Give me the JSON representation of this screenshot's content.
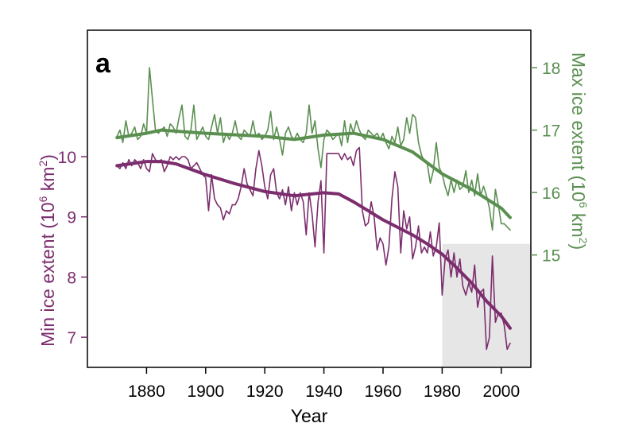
{
  "chart_data": {
    "type": "line",
    "panel_label": "a",
    "xlabel": "Year",
    "xlim": [
      1860,
      2010
    ],
    "x_ticks": [
      1880,
      1900,
      1920,
      1940,
      1960,
      1980,
      2000
    ],
    "left_axis": {
      "label_prefix": "Min ice extent (10",
      "label_sup": "6",
      "label_mid": " km",
      "label_sup2": "2",
      "label_suffix": ")",
      "color": "#7b2d6e",
      "ylim": [
        6.5,
        12.1
      ],
      "ticks": [
        7,
        8,
        9,
        10
      ]
    },
    "right_axis": {
      "label_prefix": "Max ice extent (10",
      "label_sup": "6",
      "label_mid": " km",
      "label_sup2": "2",
      "label_suffix": ")",
      "color": "#5a8f50",
      "ylim": [
        13.2,
        18.6
      ],
      "ticks": [
        15,
        16,
        17,
        18
      ]
    },
    "shaded_region": {
      "x": [
        1980,
        2010
      ],
      "y_left": [
        6.5,
        8.55
      ],
      "color": "#e6e6e6"
    },
    "series": [
      {
        "axis": "right",
        "style": "raw",
        "color": "#5a8f50",
        "points": [
          [
            1870,
            16.9
          ],
          [
            1871,
            17.0
          ],
          [
            1872,
            16.8
          ],
          [
            1873,
            17.15
          ],
          [
            1874,
            16.9
          ],
          [
            1875,
            16.95
          ],
          [
            1876,
            17.05
          ],
          [
            1877,
            16.85
          ],
          [
            1878,
            16.9
          ],
          [
            1879,
            17.1
          ],
          [
            1880,
            16.95
          ],
          [
            1881,
            18.0
          ],
          [
            1882,
            17.5
          ],
          [
            1883,
            17.0
          ],
          [
            1884,
            16.95
          ],
          [
            1885,
            17.0
          ],
          [
            1886,
            17.05
          ],
          [
            1887,
            16.9
          ],
          [
            1888,
            17.1
          ],
          [
            1889,
            17.05
          ],
          [
            1890,
            16.95
          ],
          [
            1891,
            17.2
          ],
          [
            1892,
            17.4
          ],
          [
            1893,
            16.9
          ],
          [
            1894,
            16.85
          ],
          [
            1895,
            17.0
          ],
          [
            1896,
            17.4
          ],
          [
            1897,
            16.85
          ],
          [
            1898,
            16.95
          ],
          [
            1899,
            17.05
          ],
          [
            1900,
            16.9
          ],
          [
            1901,
            16.85
          ],
          [
            1902,
            17.05
          ],
          [
            1903,
            17.25
          ],
          [
            1904,
            16.95
          ],
          [
            1905,
            17.2
          ],
          [
            1906,
            16.8
          ],
          [
            1907,
            16.95
          ],
          [
            1908,
            16.85
          ],
          [
            1909,
            16.95
          ],
          [
            1910,
            17.15
          ],
          [
            1911,
            16.9
          ],
          [
            1912,
            16.85
          ],
          [
            1913,
            17.0
          ],
          [
            1914,
            16.95
          ],
          [
            1915,
            16.9
          ],
          [
            1916,
            17.15
          ],
          [
            1917,
            16.9
          ],
          [
            1918,
            16.95
          ],
          [
            1919,
            16.85
          ],
          [
            1920,
            16.9
          ],
          [
            1921,
            17.0
          ],
          [
            1922,
            17.3
          ],
          [
            1923,
            16.85
          ],
          [
            1924,
            17.05
          ],
          [
            1925,
            16.85
          ],
          [
            1926,
            16.6
          ],
          [
            1927,
            16.95
          ],
          [
            1928,
            17.05
          ],
          [
            1929,
            16.9
          ],
          [
            1930,
            16.85
          ],
          [
            1931,
            16.95
          ],
          [
            1932,
            16.85
          ],
          [
            1933,
            16.8
          ],
          [
            1934,
            16.95
          ],
          [
            1935,
            17.4
          ],
          [
            1936,
            16.95
          ],
          [
            1937,
            17.15
          ],
          [
            1938,
            16.7
          ],
          [
            1939,
            16.4
          ],
          [
            1940,
            16.85
          ],
          [
            1941,
            17.0
          ],
          [
            1942,
            16.95
          ],
          [
            1943,
            16.85
          ],
          [
            1944,
            16.9
          ],
          [
            1945,
            16.95
          ],
          [
            1946,
            16.75
          ],
          [
            1947,
            17.15
          ],
          [
            1948,
            16.8
          ],
          [
            1949,
            17.1
          ],
          [
            1950,
            16.95
          ],
          [
            1951,
            17.15
          ],
          [
            1952,
            17.0
          ],
          [
            1953,
            16.9
          ],
          [
            1954,
            16.85
          ],
          [
            1955,
            17.0
          ],
          [
            1956,
            16.95
          ],
          [
            1957,
            16.9
          ],
          [
            1958,
            16.95
          ],
          [
            1959,
            16.85
          ],
          [
            1960,
            16.95
          ],
          [
            1961,
            16.8
          ],
          [
            1962,
            16.7
          ],
          [
            1963,
            16.9
          ],
          [
            1964,
            16.8
          ],
          [
            1965,
            17.05
          ],
          [
            1966,
            16.75
          ],
          [
            1967,
            16.85
          ],
          [
            1968,
            17.2
          ],
          [
            1969,
            16.95
          ],
          [
            1970,
            17.25
          ],
          [
            1971,
            17.2
          ],
          [
            1972,
            16.8
          ],
          [
            1973,
            16.6
          ],
          [
            1974,
            16.5
          ],
          [
            1975,
            16.45
          ],
          [
            1976,
            16.15
          ],
          [
            1977,
            16.35
          ],
          [
            1978,
            16.8
          ],
          [
            1979,
            16.4
          ],
          [
            1980,
            16.3
          ],
          [
            1981,
            16.1
          ],
          [
            1982,
            15.95
          ],
          [
            1983,
            16.2
          ],
          [
            1984,
            16.0
          ],
          [
            1985,
            16.2
          ],
          [
            1986,
            16.05
          ],
          [
            1987,
            16.1
          ],
          [
            1988,
            16.35
          ],
          [
            1989,
            16.0
          ],
          [
            1990,
            16.2
          ],
          [
            1991,
            15.95
          ],
          [
            1992,
            16.3
          ],
          [
            1993,
            15.95
          ],
          [
            1994,
            16.1
          ],
          [
            1995,
            15.95
          ],
          [
            1996,
            15.75
          ],
          [
            1997,
            15.4
          ],
          [
            1998,
            16.05
          ],
          [
            1999,
            15.8
          ],
          [
            2000,
            15.5
          ],
          [
            2001,
            15.5
          ],
          [
            2002,
            15.45
          ],
          [
            2003,
            15.4
          ]
        ]
      },
      {
        "axis": "right",
        "style": "smooth",
        "color": "#5a8f50",
        "points": [
          [
            1870,
            16.88
          ],
          [
            1880,
            16.95
          ],
          [
            1885,
            17.0
          ],
          [
            1900,
            16.95
          ],
          [
            1920,
            16.9
          ],
          [
            1930,
            16.85
          ],
          [
            1940,
            16.92
          ],
          [
            1950,
            16.95
          ],
          [
            1960,
            16.85
          ],
          [
            1970,
            16.65
          ],
          [
            1980,
            16.3
          ],
          [
            1990,
            16.05
          ],
          [
            2000,
            15.75
          ],
          [
            2003,
            15.6
          ]
        ]
      },
      {
        "axis": "left",
        "style": "raw",
        "color": "#7b2d6e",
        "points": [
          [
            1870,
            9.85
          ],
          [
            1871,
            9.8
          ],
          [
            1872,
            9.9
          ],
          [
            1873,
            9.8
          ],
          [
            1874,
            9.95
          ],
          [
            1875,
            9.85
          ],
          [
            1876,
            9.95
          ],
          [
            1877,
            9.9
          ],
          [
            1878,
            9.8
          ],
          [
            1879,
            9.95
          ],
          [
            1880,
            9.8
          ],
          [
            1881,
            9.75
          ],
          [
            1882,
            10.05
          ],
          [
            1883,
            9.95
          ],
          [
            1884,
            9.9
          ],
          [
            1885,
            9.95
          ],
          [
            1886,
            9.75
          ],
          [
            1887,
            9.85
          ],
          [
            1888,
            10.0
          ],
          [
            1889,
            9.95
          ],
          [
            1890,
            10.0
          ],
          [
            1891,
            9.95
          ],
          [
            1892,
            10.0
          ],
          [
            1893,
            10.0
          ],
          [
            1894,
            9.95
          ],
          [
            1895,
            9.8
          ],
          [
            1896,
            9.85
          ],
          [
            1897,
            9.9
          ],
          [
            1898,
            9.8
          ],
          [
            1899,
            9.7
          ],
          [
            1900,
            9.65
          ],
          [
            1901,
            9.1
          ],
          [
            1902,
            9.7
          ],
          [
            1903,
            9.3
          ],
          [
            1904,
            9.2
          ],
          [
            1905,
            9.15
          ],
          [
            1906,
            8.95
          ],
          [
            1907,
            9.1
          ],
          [
            1908,
            9.05
          ],
          [
            1909,
            9.2
          ],
          [
            1910,
            9.2
          ],
          [
            1911,
            9.3
          ],
          [
            1912,
            9.5
          ],
          [
            1913,
            9.8
          ],
          [
            1914,
            9.55
          ],
          [
            1915,
            9.45
          ],
          [
            1916,
            9.35
          ],
          [
            1917,
            9.8
          ],
          [
            1918,
            10.1
          ],
          [
            1919,
            9.85
          ],
          [
            1920,
            9.5
          ],
          [
            1921,
            9.3
          ],
          [
            1922,
            9.7
          ],
          [
            1923,
            9.8
          ],
          [
            1924,
            9.4
          ],
          [
            1925,
            9.3
          ],
          [
            1926,
            9.45
          ],
          [
            1927,
            9.2
          ],
          [
            1928,
            9.5
          ],
          [
            1929,
            9.1
          ],
          [
            1930,
            9.4
          ],
          [
            1931,
            9.2
          ],
          [
            1932,
            9.4
          ],
          [
            1933,
            9.25
          ],
          [
            1934,
            8.7
          ],
          [
            1935,
            9.4
          ],
          [
            1936,
            9.05
          ],
          [
            1937,
            8.5
          ],
          [
            1938,
            9.25
          ],
          [
            1939,
            9.6
          ],
          [
            1940,
            8.4
          ],
          [
            1941,
            10.05
          ],
          [
            1942,
            10.05
          ],
          [
            1943,
            10.05
          ],
          [
            1944,
            10.05
          ],
          [
            1945,
            10.05
          ],
          [
            1946,
            9.95
          ],
          [
            1947,
            10.05
          ],
          [
            1948,
            9.95
          ],
          [
            1949,
            10.0
          ],
          [
            1950,
            9.85
          ],
          [
            1951,
            10.1
          ],
          [
            1952,
            10.15
          ],
          [
            1953,
            9.1
          ],
          [
            1954,
            8.85
          ],
          [
            1955,
            8.9
          ],
          [
            1956,
            9.25
          ],
          [
            1957,
            9.0
          ],
          [
            1958,
            8.45
          ],
          [
            1959,
            8.65
          ],
          [
            1960,
            8.55
          ],
          [
            1961,
            8.2
          ],
          [
            1962,
            8.5
          ],
          [
            1963,
            9.3
          ],
          [
            1964,
            9.75
          ],
          [
            1965,
            9.5
          ],
          [
            1966,
            8.4
          ],
          [
            1967,
            9.1
          ],
          [
            1968,
            8.8
          ],
          [
            1969,
            9.0
          ],
          [
            1970,
            8.3
          ],
          [
            1971,
            8.5
          ],
          [
            1972,
            8.85
          ],
          [
            1973,
            8.4
          ],
          [
            1974,
            8.5
          ],
          [
            1975,
            8.4
          ],
          [
            1976,
            8.75
          ],
          [
            1977,
            8.35
          ],
          [
            1978,
            8.5
          ],
          [
            1979,
            8.9
          ],
          [
            1980,
            7.7
          ],
          [
            1981,
            8.3
          ],
          [
            1982,
            8.45
          ],
          [
            1983,
            8.0
          ],
          [
            1984,
            8.4
          ],
          [
            1985,
            8.0
          ],
          [
            1986,
            8.3
          ],
          [
            1987,
            7.85
          ],
          [
            1988,
            7.7
          ],
          [
            1989,
            7.9
          ],
          [
            1990,
            7.75
          ],
          [
            1991,
            8.2
          ],
          [
            1992,
            7.5
          ],
          [
            1993,
            7.75
          ],
          [
            1994,
            7.8
          ],
          [
            1995,
            6.8
          ],
          [
            1996,
            7.0
          ],
          [
            1997,
            8.35
          ],
          [
            1998,
            7.25
          ],
          [
            1999,
            7.4
          ],
          [
            2000,
            7.4
          ],
          [
            2001,
            7.2
          ],
          [
            2002,
            6.8
          ],
          [
            2003,
            6.9
          ]
        ]
      },
      {
        "axis": "left",
        "style": "smooth",
        "color": "#7b2d6e",
        "points": [
          [
            1870,
            9.85
          ],
          [
            1880,
            9.92
          ],
          [
            1885,
            9.92
          ],
          [
            1890,
            9.88
          ],
          [
            1900,
            9.7
          ],
          [
            1910,
            9.55
          ],
          [
            1920,
            9.42
          ],
          [
            1930,
            9.35
          ],
          [
            1940,
            9.4
          ],
          [
            1945,
            9.38
          ],
          [
            1950,
            9.25
          ],
          [
            1955,
            9.1
          ],
          [
            1960,
            8.95
          ],
          [
            1970,
            8.7
          ],
          [
            1975,
            8.55
          ],
          [
            1980,
            8.38
          ],
          [
            1985,
            8.15
          ],
          [
            1990,
            7.9
          ],
          [
            1995,
            7.6
          ],
          [
            2000,
            7.35
          ],
          [
            2003,
            7.15
          ]
        ]
      }
    ]
  }
}
